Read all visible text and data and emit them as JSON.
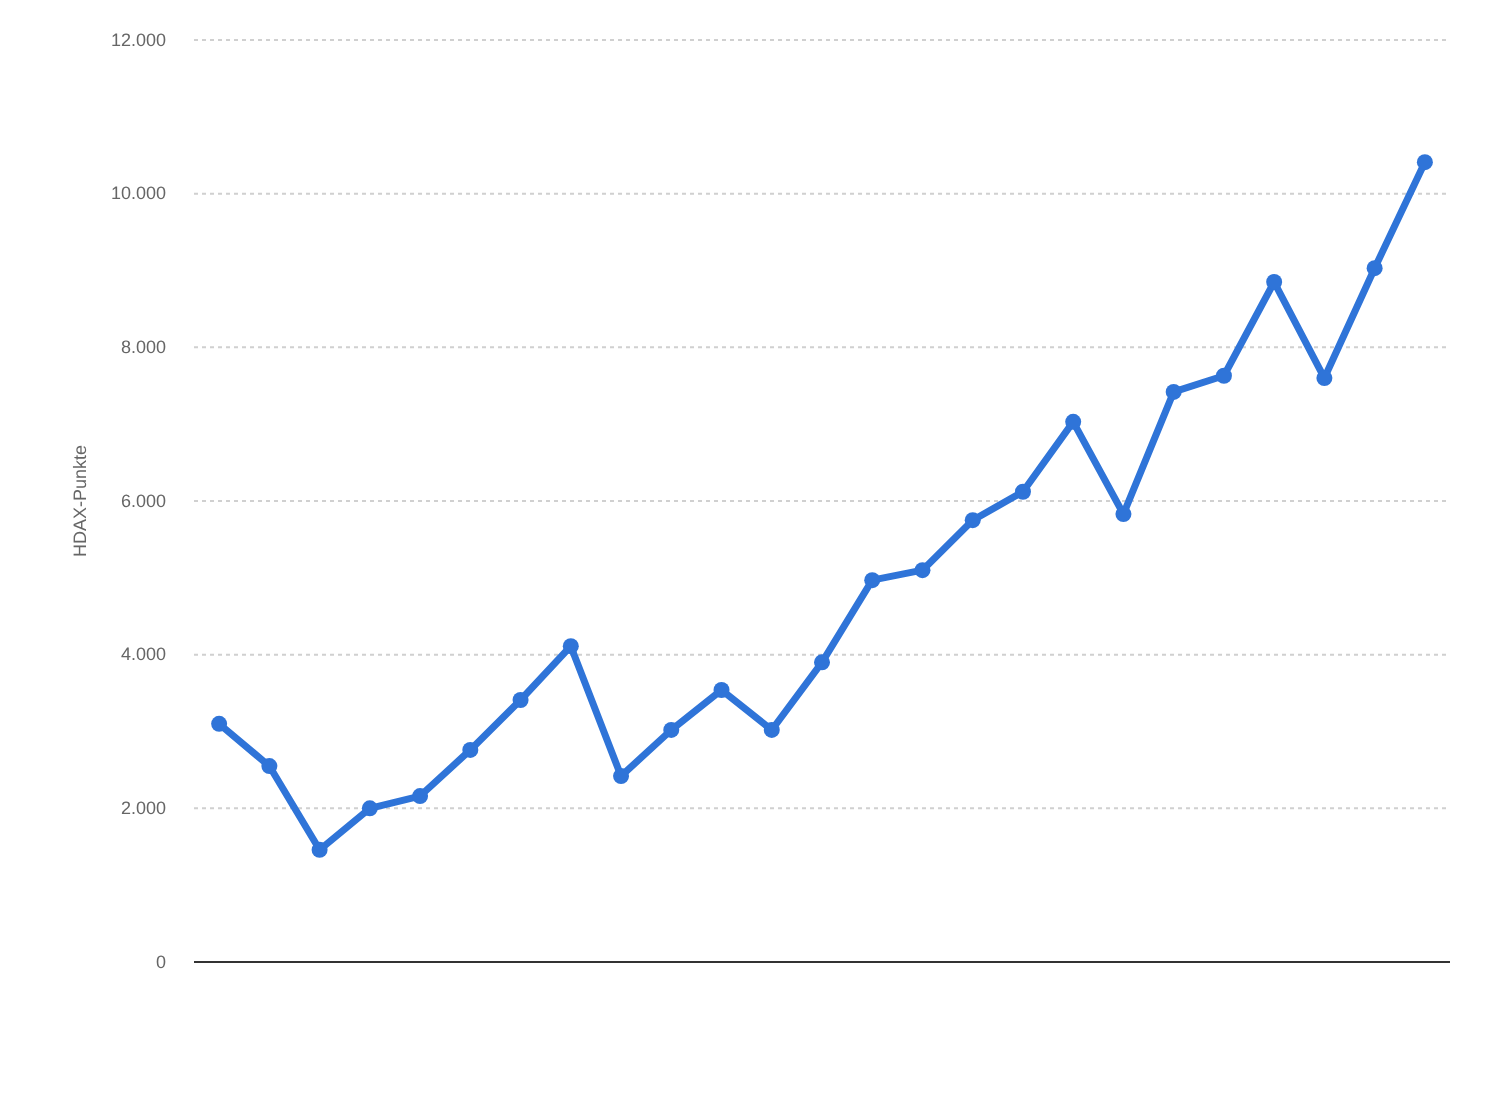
{
  "chart_data": {
    "type": "line",
    "ylabel": "HDAX-Punkte",
    "categories": [
      null,
      null,
      null,
      null,
      null,
      null,
      null,
      null,
      null,
      null,
      null,
      null,
      null,
      null,
      null,
      null,
      null,
      null,
      null,
      null,
      null,
      null,
      null,
      null,
      null
    ],
    "series": [
      {
        "color": "#2f74d8",
        "values": [
          3100,
          2550,
          1460,
          2000,
          2160,
          2760,
          3410,
          4110,
          2420,
          3020,
          3540,
          3020,
          3900,
          4970,
          5100,
          5750,
          6120,
          7030,
          5830,
          7420,
          7630,
          8850,
          7600,
          9030,
          10410
        ]
      }
    ],
    "ylim": [
      0,
      12000
    ],
    "yticks": [
      0,
      {
        "value": 2000,
        "label": "2.000"
      },
      {
        "value": 4000,
        "label": "4.000"
      },
      {
        "value": 6000,
        "label": "6.000"
      },
      {
        "value": 8000,
        "label": "8.000"
      },
      {
        "value": 10000,
        "label": "10.000"
      },
      {
        "value": 12000,
        "label": "12.000"
      }
    ],
    "grid": "y",
    "marker": "circle",
    "line_style": "solid"
  }
}
